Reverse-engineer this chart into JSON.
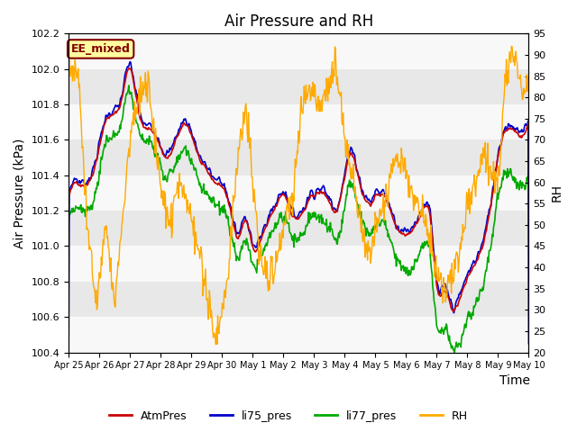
{
  "title": "Air Pressure and RH",
  "xlabel": "Time",
  "ylabel_left": "Air Pressure (kPa)",
  "ylabel_right": "RH",
  "ylim_left": [
    100.4,
    102.2
  ],
  "ylim_right": [
    20,
    95
  ],
  "yticks_left": [
    100.4,
    100.6,
    100.8,
    101.0,
    101.2,
    101.4,
    101.6,
    101.8,
    102.0,
    102.2
  ],
  "yticks_right": [
    20,
    25,
    30,
    35,
    40,
    45,
    50,
    55,
    60,
    65,
    70,
    75,
    80,
    85,
    90,
    95
  ],
  "xtick_labels": [
    "Apr 25",
    "Apr 26",
    "Apr 27",
    "Apr 28",
    "Apr 29",
    "Apr 30",
    "May 1",
    "May 2",
    "May 3",
    "May 4",
    "May 5",
    "May 6",
    "May 7",
    "May 8",
    "May 9",
    "May 10"
  ],
  "annotation_text": "EE_mixed",
  "annotation_box_color": "#ffffa0",
  "annotation_text_color": "#800000",
  "colors": {
    "AtmPres": "#cc0000",
    "li75_pres": "#0000cc",
    "li77_pres": "#00aa00",
    "RH": "#ffaa00"
  },
  "bg_stripe_color": "#e8e8e8",
  "bg_white_color": "#f8f8f8",
  "title_fontsize": 12,
  "axis_fontsize": 10,
  "tick_fontsize": 8
}
